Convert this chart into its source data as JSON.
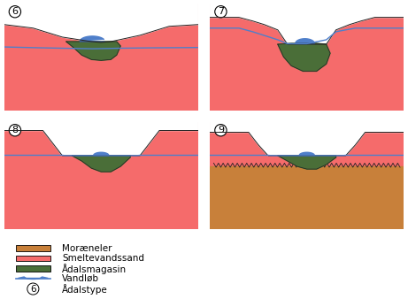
{
  "background_color": "#ffffff",
  "salmon_color": "#f56b6b",
  "green_color": "#4a6e38",
  "blue_color": "#4f7fca",
  "orange_color": "#c8803a",
  "dark_outline": "#222222",
  "panel_labels": [
    "6",
    "7",
    "8",
    "9"
  ],
  "font_size_label": 8,
  "font_size_legend": 7.5
}
